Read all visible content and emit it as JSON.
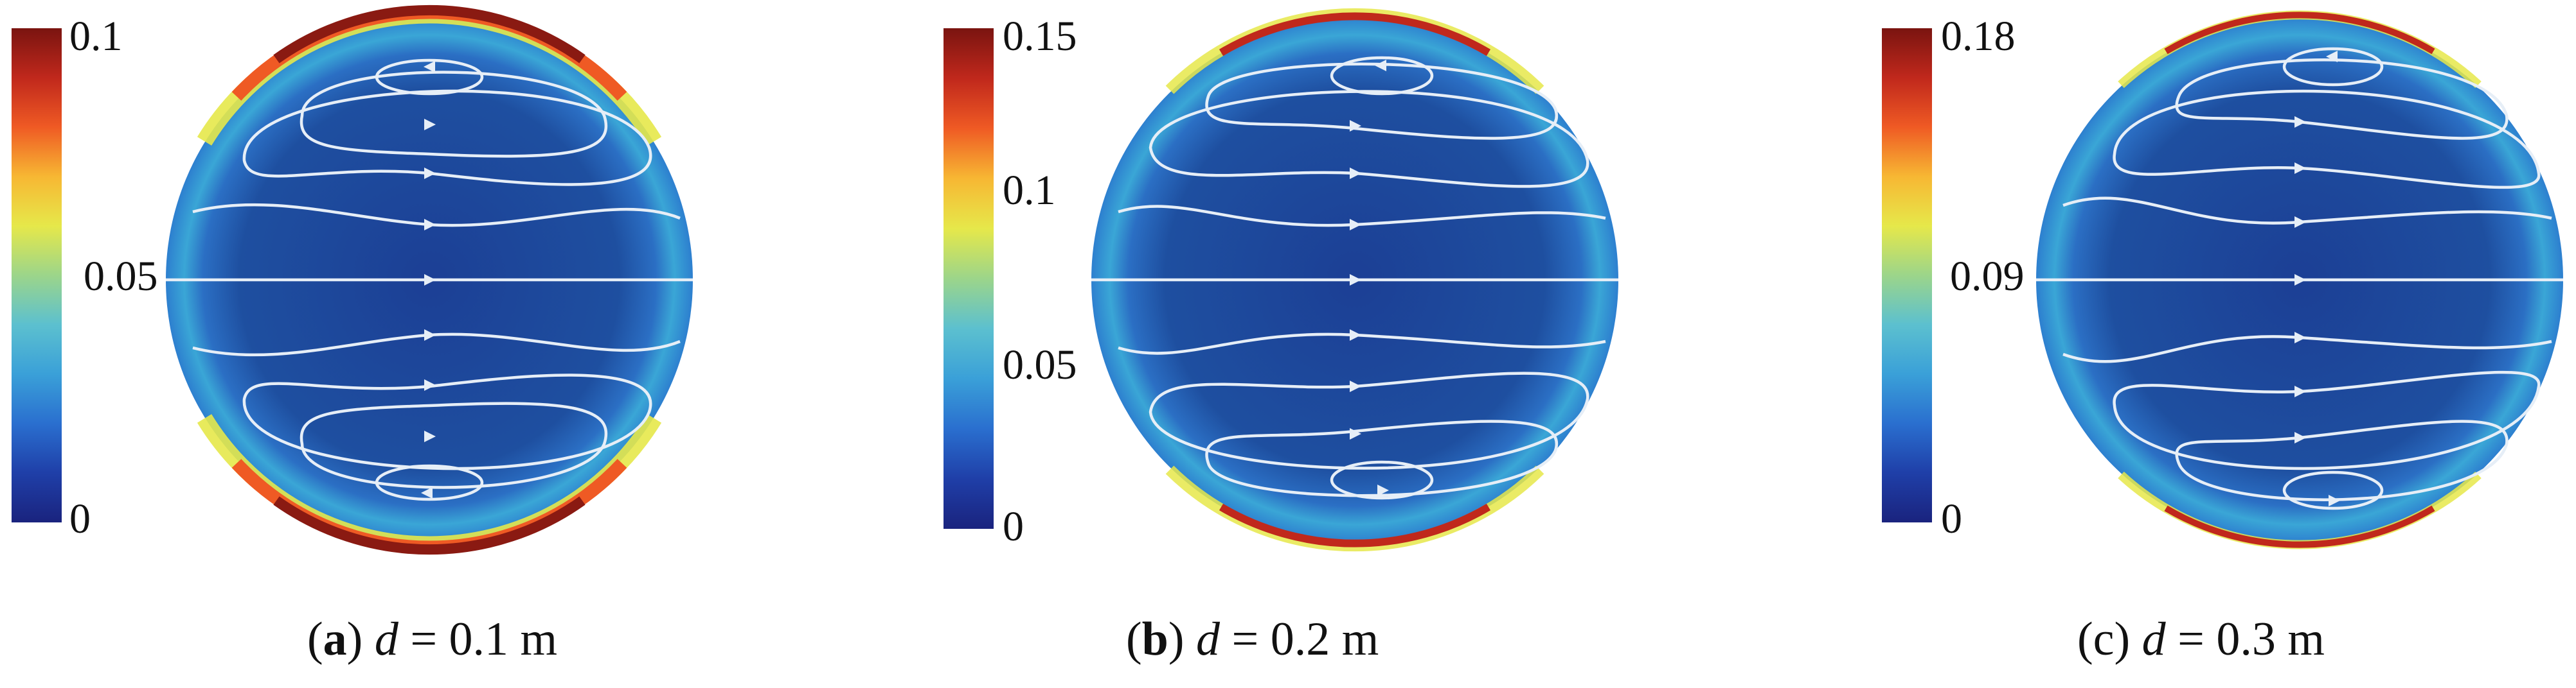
{
  "panels": [
    {
      "colorbar": {
        "max_label": "0.1",
        "mid_label": "0.05",
        "min_label": "0"
      },
      "caption": {
        "open": "(",
        "letter": "a",
        "close": ")",
        "var": "d",
        "rest": " = 0.1 m"
      }
    },
    {
      "colorbar": {
        "max_label": "0.15",
        "mid_label": "0.1",
        "low_label": "0.05",
        "min_label": "0"
      },
      "caption": {
        "open": "(",
        "letter": "b",
        "close": ")",
        "var": "d",
        "rest": " = 0.2 m"
      }
    },
    {
      "colorbar": {
        "max_label": "0.18",
        "mid_label": "0.09",
        "min_label": "0"
      },
      "caption": {
        "open": "(c) ",
        "letter": "",
        "close": "",
        "var": "d",
        "rest": " = 0.3 m"
      }
    }
  ],
  "colors": {
    "colormap": [
      "#1a237e",
      "#1f3fa8",
      "#2a6fcf",
      "#3aa0d8",
      "#5cc0cf",
      "#9cd58a",
      "#e6e84a",
      "#f7b733",
      "#ef5a24",
      "#c0281c",
      "#7a1410"
    ],
    "field_background": "#1e4f9e",
    "streamline": "#e6eef7"
  }
}
